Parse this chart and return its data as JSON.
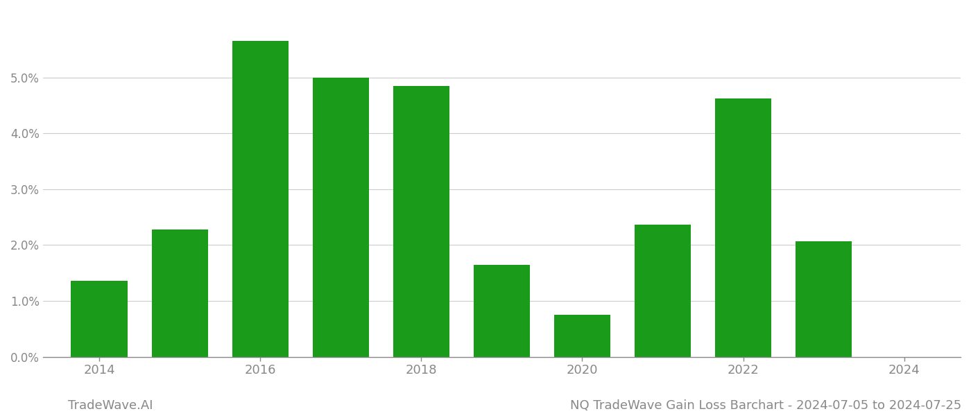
{
  "years": [
    2014,
    2015,
    2016,
    2017,
    2018,
    2019,
    2020,
    2021,
    2022,
    2023
  ],
  "values": [
    0.01355,
    0.02275,
    0.0565,
    0.04995,
    0.0485,
    0.0165,
    0.0075,
    0.0237,
    0.0463,
    0.02065
  ],
  "bar_color": "#1a9b1a",
  "background_color": "#ffffff",
  "grid_color": "#cccccc",
  "axis_color": "#888888",
  "tick_color": "#888888",
  "footer_left": "TradeWave.AI",
  "footer_right": "NQ TradeWave Gain Loss Barchart - 2024-07-05 to 2024-07-25",
  "footer_color": "#888888",
  "footer_fontsize": 13,
  "ylim": [
    0,
    0.062
  ],
  "yticks": [
    0.0,
    0.01,
    0.02,
    0.03,
    0.04,
    0.05
  ],
  "bar_width": 0.7,
  "xtick_labels": [
    2014,
    2016,
    2018,
    2020,
    2022,
    2024
  ]
}
